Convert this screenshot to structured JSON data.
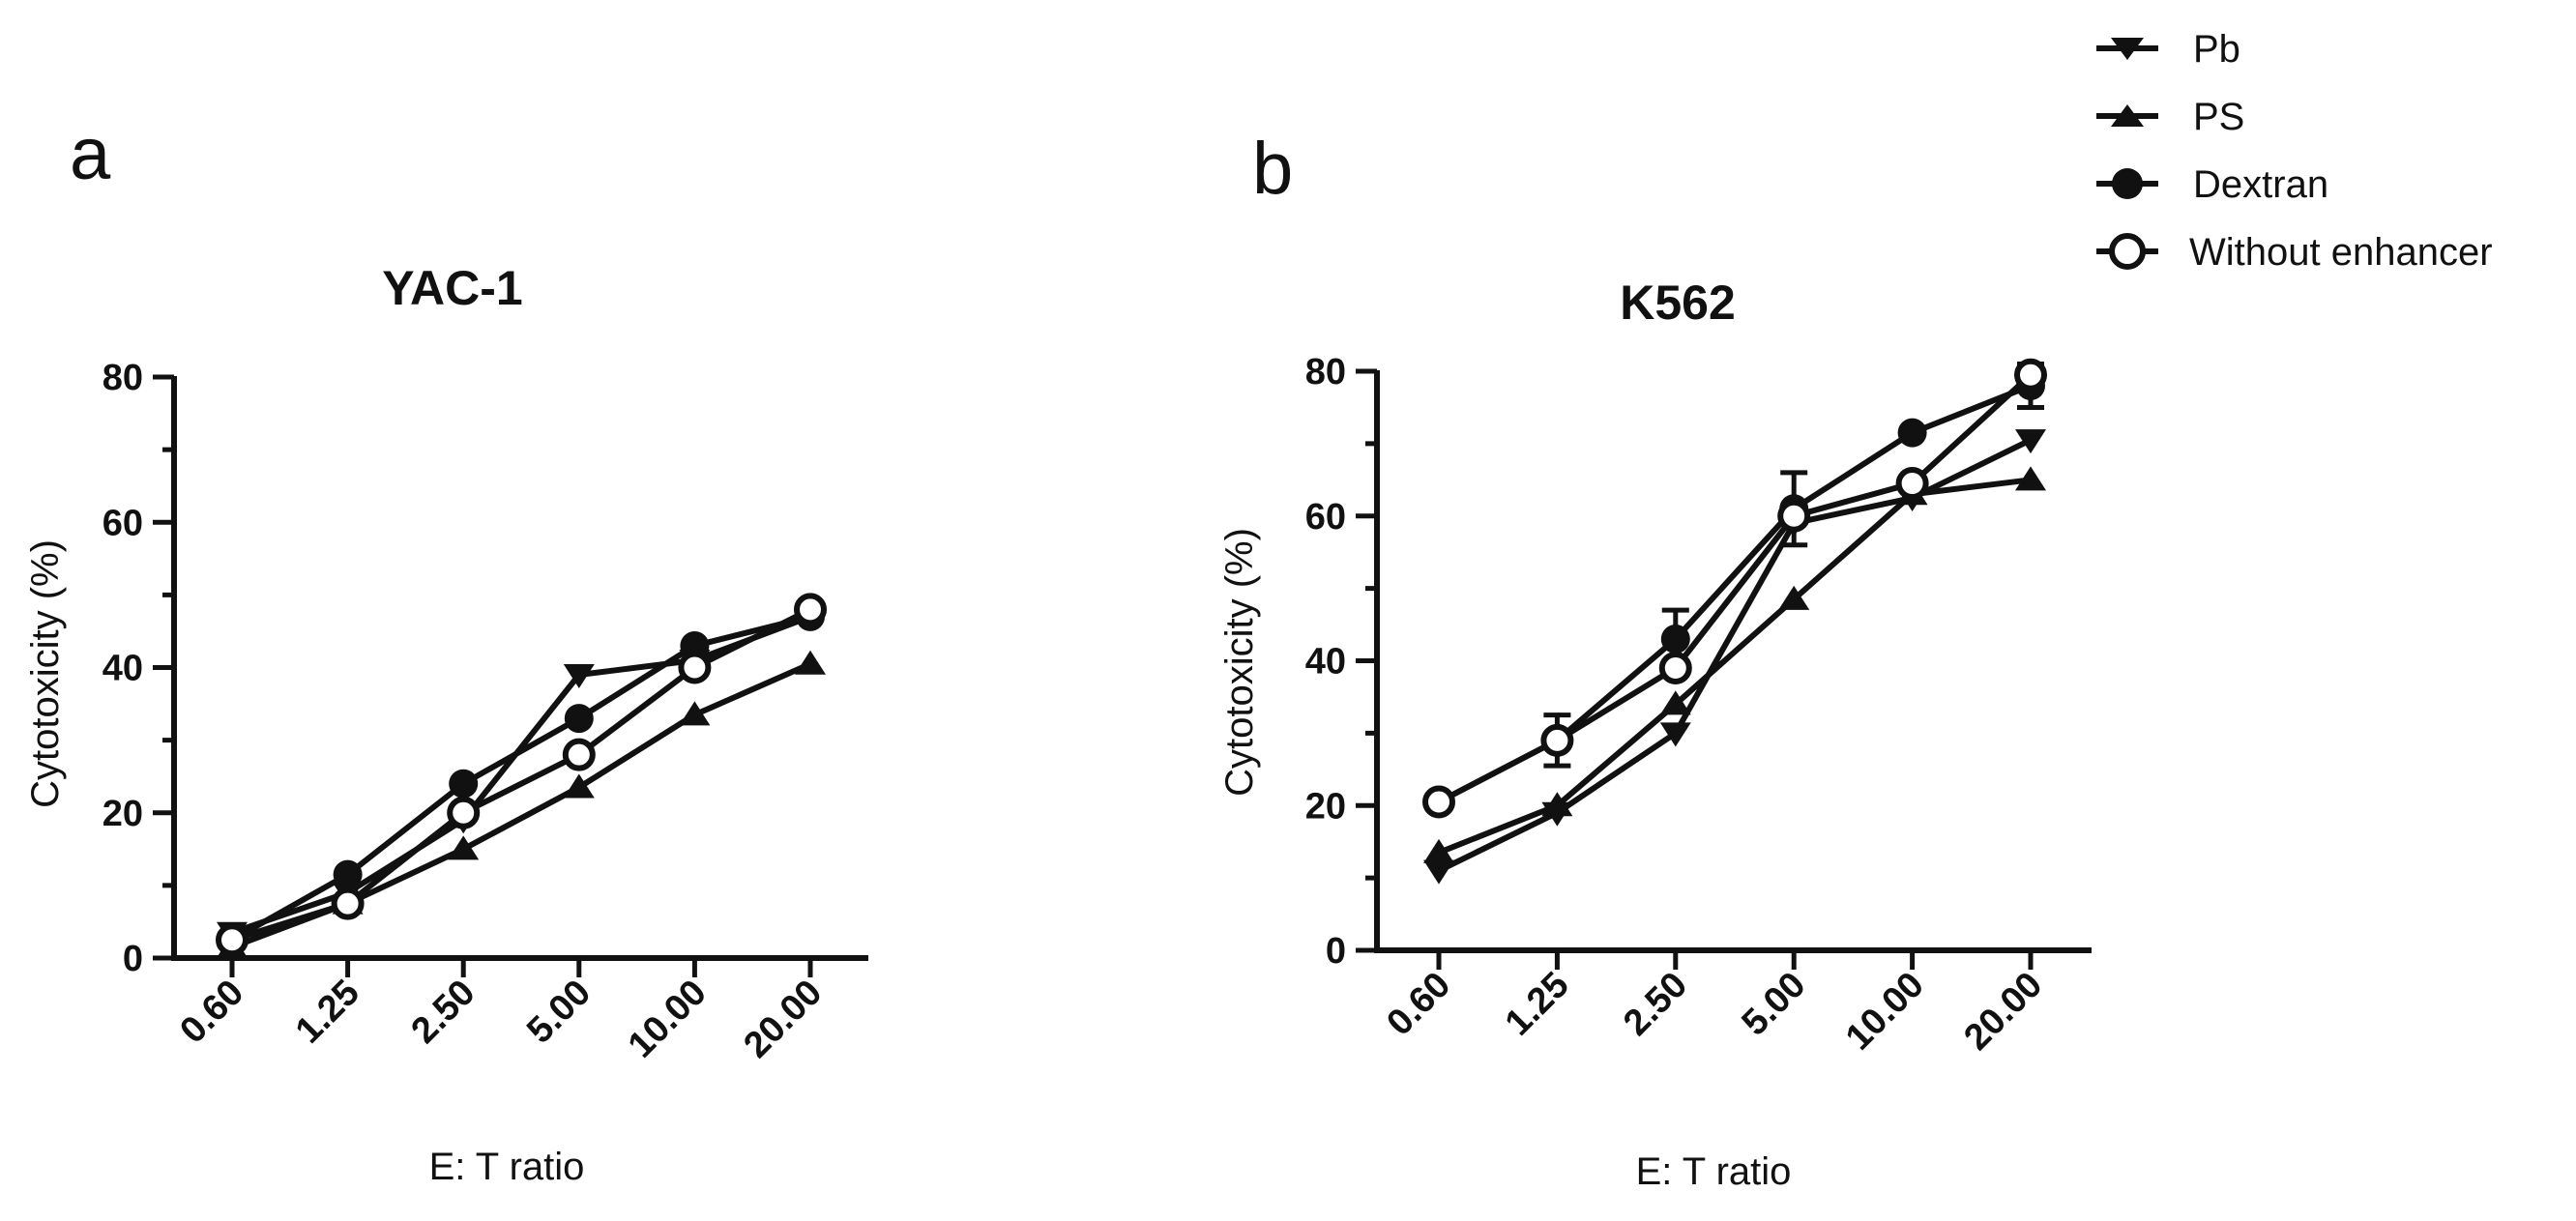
{
  "panels": [
    {
      "letter": "a"
    },
    {
      "letter": "b"
    }
  ],
  "legend": {
    "entries": [
      {
        "name": "Pb",
        "marker": "triangle-down-filled"
      },
      {
        "name": "PS",
        "marker": "triangle-up-filled"
      },
      {
        "name": "Dextran",
        "marker": "circle-filled"
      },
      {
        "name": "Without enhancer",
        "marker": "circle-open"
      }
    ]
  },
  "colors": {
    "line": "#111111",
    "background": "#ffffff"
  },
  "chart_data": [
    {
      "type": "line",
      "title": "YAC-1",
      "xlabel": "E: T ratio",
      "ylabel": "Cytotoxicity (%)",
      "categories": [
        "0.60",
        "1.25",
        "2.50",
        "5.00",
        "10.00",
        "20.00"
      ],
      "ylim": [
        0,
        80
      ],
      "yticks": [
        "0",
        "20",
        "40",
        "60",
        "80"
      ],
      "grid": false,
      "series": [
        {
          "name": "Pb",
          "values": [
            3.5,
            9,
            19,
            39,
            41,
            47
          ]
        },
        {
          "name": "PS",
          "values": [
            1.5,
            7.5,
            15,
            23.5,
            33.5,
            40.5
          ]
        },
        {
          "name": "Dextran",
          "values": [
            2.5,
            11.5,
            24,
            33,
            43,
            47
          ]
        },
        {
          "name": "Without enhancer",
          "values": [
            2.5,
            7.5,
            20,
            28,
            40,
            48
          ]
        }
      ]
    },
    {
      "type": "line",
      "title": "K562",
      "xlabel": "E: T ratio",
      "ylabel": "Cytotoxicity (%)",
      "categories": [
        "0.60",
        "1.25",
        "2.50",
        "5.00",
        "10.00",
        "20.00"
      ],
      "ylim": [
        0,
        80
      ],
      "yticks": [
        "0",
        "20",
        "40",
        "60",
        "80"
      ],
      "grid": false,
      "series": [
        {
          "name": "Pb",
          "values": [
            11,
            19,
            30,
            59,
            62.5,
            70.5
          ]
        },
        {
          "name": "PS",
          "values": [
            13.5,
            20,
            34,
            48.5,
            63,
            65
          ]
        },
        {
          "name": "Dextran",
          "values": [
            20.5,
            29,
            43,
            61,
            71.5,
            78
          ]
        },
        {
          "name": "Without enhancer",
          "values": [
            20.5,
            29,
            39,
            60,
            64.5,
            79.5
          ]
        }
      ],
      "error_bars": [
        {
          "series": "Without enhancer",
          "category": "1.25",
          "value": 29,
          "err": 3.5
        },
        {
          "series": "Dextran",
          "category": "2.50",
          "value": 43,
          "err": 4
        },
        {
          "series": "Dextran",
          "category": "5.00",
          "value": 61,
          "err": 5
        },
        {
          "series": "Dextran",
          "category": "20.00",
          "value": 78,
          "err": 3
        }
      ]
    }
  ]
}
